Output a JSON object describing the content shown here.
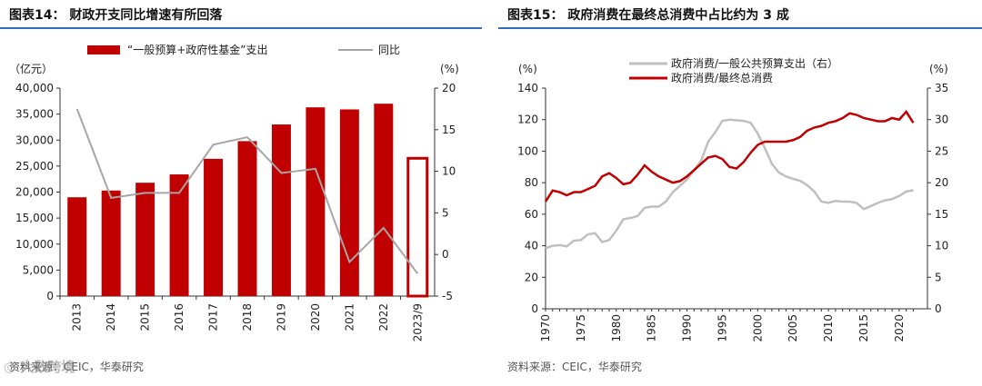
{
  "chart_data": [
    {
      "type": "bar",
      "title": "图表14：  财政开支同比增速有所回落",
      "source": "资料来源：CEIC，华泰研究",
      "y_left_label": "（亿元）",
      "y_right_label": "(%)",
      "categories": [
        "2013",
        "2014",
        "2015",
        "2016",
        "2017",
        "2018",
        "2019",
        "2020",
        "2021",
        "2022",
        "2023/9"
      ],
      "ylim_left": [
        0,
        40000
      ],
      "ylim_right": [
        -5,
        20
      ],
      "yticks_left": [
        "0",
        "5,000",
        "10,000",
        "15,000",
        "20,000",
        "25,000",
        "30,000",
        "35,000",
        "40,000"
      ],
      "yticks_right": [
        "-5",
        "0",
        "5",
        "10",
        "15",
        "20"
      ],
      "series": [
        {
          "name": "“一般预算+政府性基金”支出",
          "kind": "bar",
          "axis": "left",
          "values": [
            19000,
            20300,
            21800,
            23400,
            26400,
            29800,
            33000,
            36300,
            35900,
            37000,
            26500
          ],
          "highlight_last": true
        },
        {
          "name": "同比",
          "kind": "line",
          "axis": "right",
          "values": [
            17.5,
            6.8,
            7.4,
            7.4,
            13.2,
            14.1,
            9.8,
            10.3,
            -0.9,
            3.2,
            -2.3
          ]
        }
      ],
      "colors": {
        "bar": "#c00000",
        "line": "#a6a6a6",
        "highlight": "#c00000"
      },
      "watermark": "大数跨境"
    },
    {
      "type": "line",
      "title": "图表15：  政府消费在最终总消费中占比约为 3 成",
      "source": "资料来源：CEIC，华泰研究",
      "y_left_label": "(%)",
      "y_right_label": "(%)",
      "x": [
        1970,
        1971,
        1972,
        1973,
        1974,
        1975,
        1976,
        1977,
        1978,
        1979,
        1980,
        1981,
        1982,
        1983,
        1984,
        1985,
        1986,
        1987,
        1988,
        1989,
        1990,
        1991,
        1992,
        1993,
        1994,
        1995,
        1996,
        1997,
        1998,
        1999,
        2000,
        2001,
        2002,
        2003,
        2004,
        2005,
        2006,
        2007,
        2008,
        2009,
        2010,
        2011,
        2012,
        2013,
        2014,
        2015,
        2016,
        2017,
        2018,
        2019,
        2020,
        2021,
        2022
      ],
      "xticks": [
        "1970",
        "1975",
        "1980",
        "1985",
        "1990",
        "1995",
        "2000",
        "2005",
        "2010",
        "2015",
        "2020"
      ],
      "ylim_left": [
        0,
        140
      ],
      "ylim_right": [
        0,
        35
      ],
      "yticks_left": [
        "0",
        "20",
        "40",
        "60",
        "80",
        "100",
        "120",
        "140"
      ],
      "yticks_right": [
        "0",
        "5",
        "10",
        "15",
        "20",
        "25",
        "30",
        "35"
      ],
      "series": [
        {
          "name": "政府消费/一般公共预算支出（右）",
          "axis": "right",
          "color": "#bfbfbf",
          "values": [
            9.6,
            10.0,
            10.1,
            9.9,
            10.8,
            10.9,
            11.8,
            12.0,
            10.6,
            10.9,
            12.4,
            14.2,
            14.4,
            14.7,
            16.0,
            16.2,
            16.2,
            17.0,
            18.5,
            19.5,
            20.5,
            22.0,
            23.5,
            26.5,
            28.0,
            29.8,
            30.0,
            29.9,
            29.8,
            29.5,
            27.8,
            25.5,
            23.0,
            21.6,
            21.0,
            20.6,
            20.3,
            19.6,
            18.6,
            17.0,
            16.8,
            17.1,
            17.0,
            17.0,
            16.8,
            15.8,
            16.3,
            16.8,
            17.2,
            17.4,
            17.9,
            18.6,
            18.8
          ]
        },
        {
          "name": "政府消费/最终总消费",
          "axis": "left",
          "color": "#c00000",
          "values": [
            68,
            75,
            74,
            72,
            74,
            74,
            76,
            78,
            84,
            86,
            83,
            79,
            80,
            85,
            91,
            87,
            84,
            82,
            80,
            81,
            84,
            88,
            92,
            96,
            97,
            95,
            90,
            89,
            93,
            99,
            104,
            106,
            106,
            106,
            106,
            107,
            109,
            113,
            115,
            116,
            118,
            119,
            121,
            124,
            123,
            121,
            120,
            119,
            119,
            121,
            120,
            125,
            118
          ]
        }
      ]
    }
  ]
}
